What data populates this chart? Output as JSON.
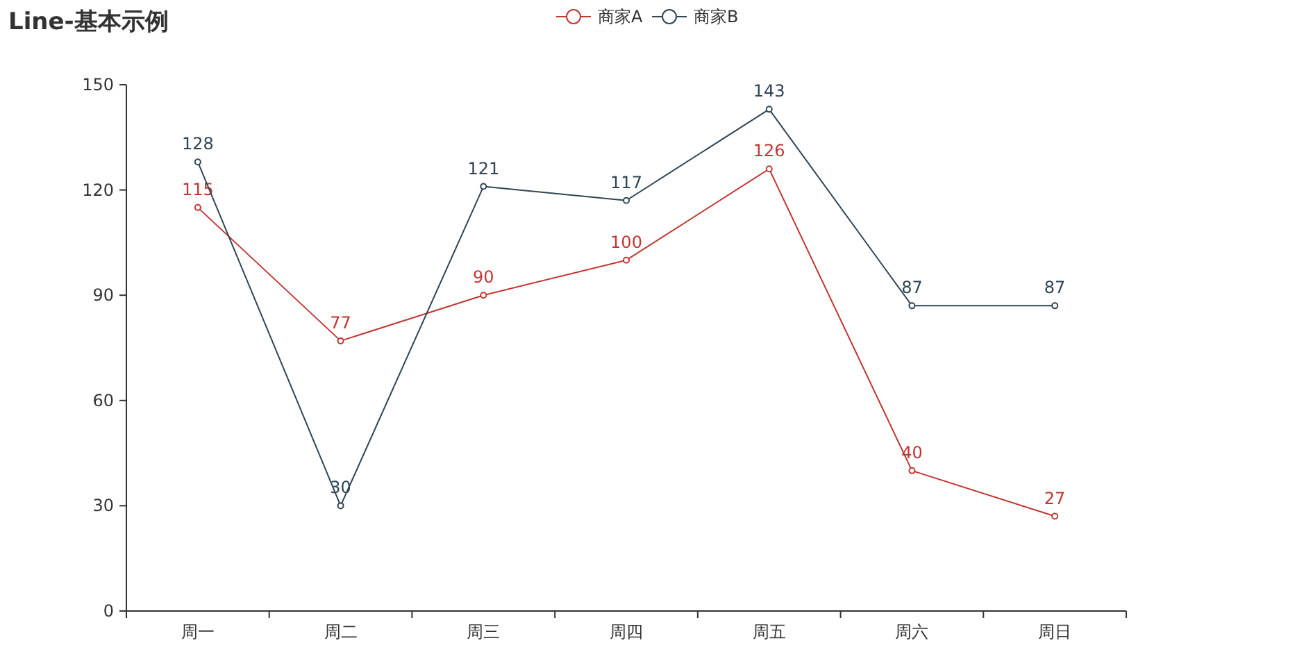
{
  "chart_data": {
    "type": "line",
    "title": "Line-基本示例",
    "categories": [
      "周一",
      "周二",
      "周三",
      "周四",
      "周五",
      "周六",
      "周日"
    ],
    "series": [
      {
        "name": "商家A",
        "color": "#c23531",
        "values": [
          115,
          77,
          90,
          100,
          126,
          40,
          27
        ]
      },
      {
        "name": "商家B",
        "color": "#2f4554",
        "values": [
          128,
          30,
          121,
          117,
          143,
          87,
          87
        ]
      }
    ],
    "ylim": [
      0,
      150
    ],
    "yticks": [
      0,
      30,
      60,
      90,
      120,
      150
    ],
    "grid": false,
    "legend": "top",
    "marker": "circle",
    "line_style": "solid",
    "data_labels": true
  }
}
